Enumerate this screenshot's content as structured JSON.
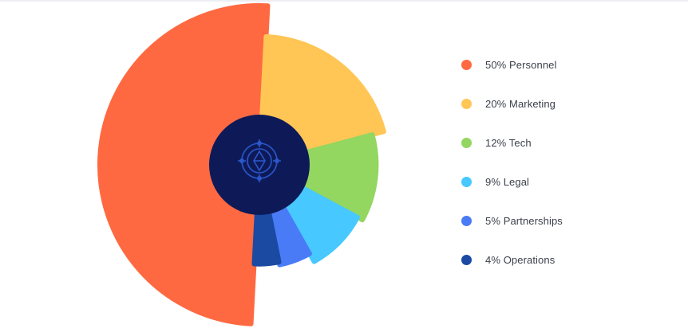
{
  "chart_data": {
    "type": "pie",
    "variant": "variable-radius donut (polar area)",
    "title": "",
    "slices": [
      {
        "label": "50% Personnel",
        "category": "Personnel",
        "value": 50,
        "color": "#ff6941"
      },
      {
        "label": "20% Marketing",
        "category": "Marketing",
        "value": 20,
        "color": "#ffc655"
      },
      {
        "label": "12% Tech",
        "category": "Tech",
        "value": 12,
        "color": "#93d660"
      },
      {
        "label": "9% Legal",
        "category": "Legal",
        "value": 9,
        "color": "#47c8ff"
      },
      {
        "label": "5% Partnerships",
        "category": "Partnerships",
        "value": 5,
        "color": "#4a7bf7"
      },
      {
        "label": "4% Operations",
        "category": "Operations",
        "value": 4,
        "color": "#1b4aa3"
      }
    ],
    "legend_position": "right",
    "center_color": "#0e1a58",
    "center_icon": "compass-logo-icon"
  }
}
